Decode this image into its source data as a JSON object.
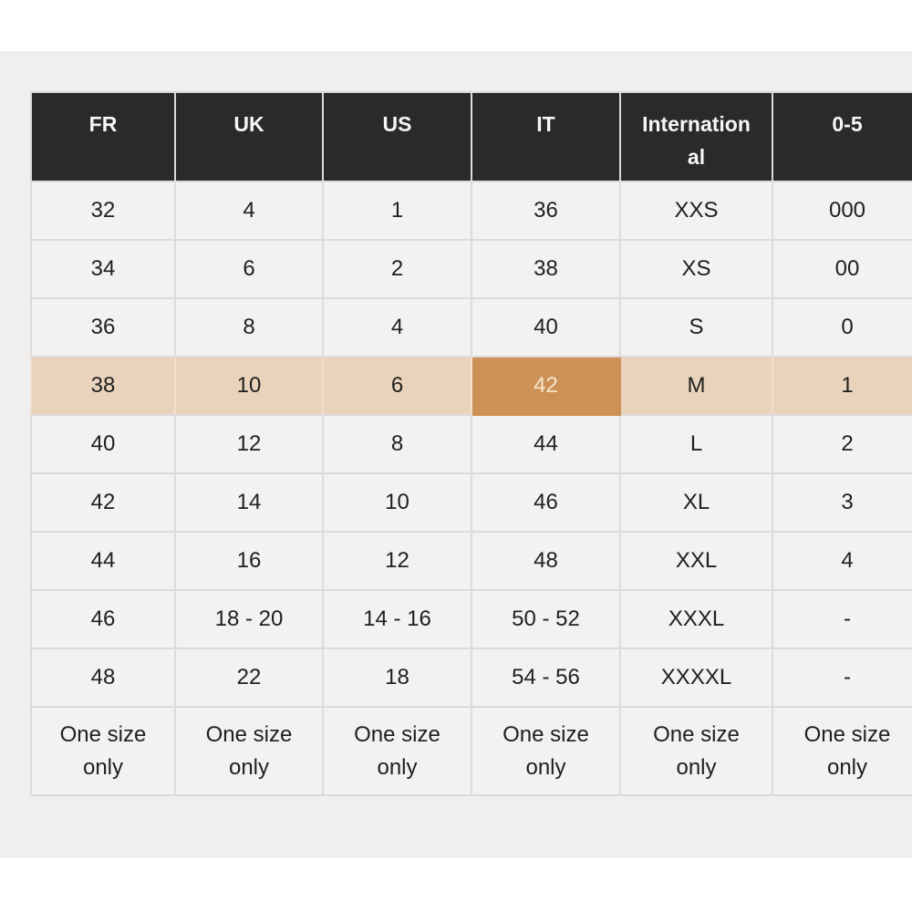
{
  "table": {
    "columns": [
      "FR",
      "UK",
      "US",
      "IT",
      "International",
      "0-5"
    ],
    "rows": [
      [
        "32",
        "4",
        "1",
        "36",
        "XXS",
        "000"
      ],
      [
        "34",
        "6",
        "2",
        "38",
        "XS",
        "00"
      ],
      [
        "36",
        "8",
        "4",
        "40",
        "S",
        "0"
      ],
      [
        "38",
        "10",
        "6",
        "42",
        "M",
        "1"
      ],
      [
        "40",
        "12",
        "8",
        "44",
        "L",
        "2"
      ],
      [
        "42",
        "14",
        "10",
        "46",
        "XL",
        "3"
      ],
      [
        "44",
        "16",
        "12",
        "48",
        "XXL",
        "4"
      ],
      [
        "46",
        "18 - 20",
        "14 - 16",
        "50 - 52",
        "XXXL",
        "-"
      ],
      [
        "48",
        "22",
        "18",
        "54 - 56",
        "XXXXL",
        "-"
      ],
      [
        "One size only",
        "One size only",
        "One size only",
        "One size only",
        "One size only",
        "One size only"
      ]
    ],
    "highlight": {
      "row_index": 3,
      "column_index": 3
    }
  },
  "colors": {
    "page_bg": "#ffffff",
    "panel_bg": "#f0efed",
    "cell_bg": "#f3f2f0",
    "cell_border": "#dcdbd9",
    "body_text": "#21201f",
    "header_bg": "#2b2a29",
    "header_text": "#f7f6f5",
    "highlight_row_bg": "#e9d3bc",
    "highlight_row_border": "#f0e1ce",
    "highlight_cell_bg": "#cd9156",
    "highlight_cell_text": "#f6e6cc"
  }
}
